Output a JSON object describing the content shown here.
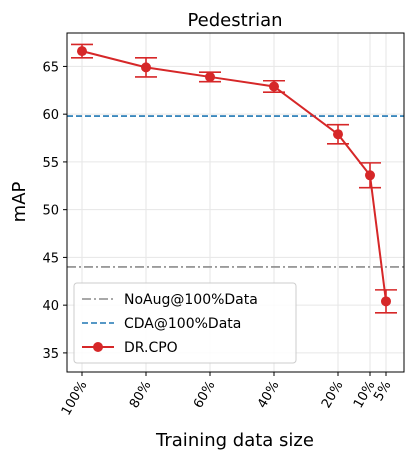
{
  "chart_data": {
    "type": "line",
    "title": "Pedestrian",
    "xlabel": "Training data size",
    "ylabel": "mAP",
    "categories": [
      "100%",
      "80%",
      "60%",
      "40%",
      "20%",
      "10%",
      "5%"
    ],
    "x": [
      100,
      80,
      60,
      40,
      20,
      10,
      5
    ],
    "ylim": [
      33,
      68.5
    ],
    "yticks": [
      35,
      40,
      45,
      50,
      55,
      60,
      65
    ],
    "grid": true,
    "legend_position": "lower-left",
    "reference_lines": [
      {
        "name": "NoAug@100%Data",
        "value": 44.0,
        "style": "dashdot",
        "color": "#8c8c8c"
      },
      {
        "name": "CDA@100%Data",
        "value": 59.8,
        "style": "dashed",
        "color": "#1f77b4"
      }
    ],
    "series": [
      {
        "name": "DR.CPO",
        "color": "#d62728",
        "values": [
          66.6,
          64.9,
          63.9,
          62.9,
          57.9,
          53.6,
          40.4
        ],
        "errors": [
          0.7,
          1.0,
          0.5,
          0.6,
          1.0,
          1.3,
          1.2
        ]
      }
    ]
  }
}
